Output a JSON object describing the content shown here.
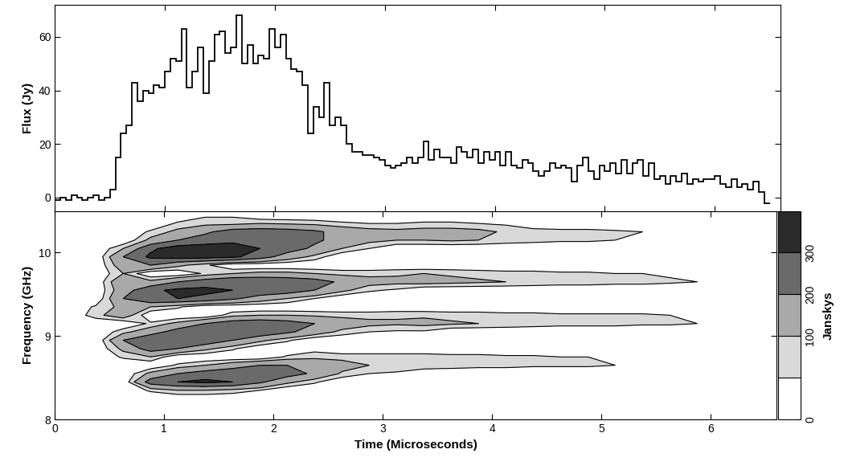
{
  "chart_data": [
    {
      "type": "histogram",
      "y_label": "Flux (Jy)",
      "bins": [
        0.0,
        0.05,
        0.1,
        0.15,
        0.2,
        0.25,
        0.3,
        0.35,
        0.4,
        0.45,
        0.5,
        0.55,
        0.6,
        0.65,
        0.7,
        0.75,
        0.8,
        0.85,
        0.9,
        0.95,
        1.0,
        1.05,
        1.1,
        1.15,
        1.2,
        1.25,
        1.3,
        1.35,
        1.4,
        1.45,
        1.5,
        1.55,
        1.6,
        1.65,
        1.7,
        1.75,
        1.8,
        1.85,
        1.9,
        1.95,
        2.0,
        2.05,
        2.1,
        2.15,
        2.2,
        2.25,
        2.3,
        2.35,
        2.4,
        2.45,
        2.5,
        2.55,
        2.6,
        2.65,
        2.7,
        2.75,
        2.8,
        2.85,
        2.9,
        2.95,
        3.0,
        3.05,
        3.1,
        3.15,
        3.2,
        3.25,
        3.3,
        3.35,
        3.4,
        3.45,
        3.5,
        3.55,
        3.6,
        3.65,
        3.7,
        3.75,
        3.8,
        3.85,
        3.9,
        3.95,
        4.0,
        4.05,
        4.1,
        4.15,
        4.2,
        4.25,
        4.3,
        4.35,
        4.4,
        4.45,
        4.5,
        4.55,
        4.6,
        4.65,
        4.7,
        4.75,
        4.8,
        4.85,
        4.9,
        4.95,
        5.0,
        5.05,
        5.1,
        5.15,
        5.2,
        5.25,
        5.3,
        5.35,
        5.4,
        5.45,
        5.5,
        5.55,
        5.6,
        5.65,
        5.7,
        5.75,
        5.8,
        5.85,
        5.9,
        5.95,
        6.0,
        6.05,
        6.1,
        6.15,
        6.2,
        6.25,
        6.3,
        6.35,
        6.4,
        6.45,
        6.5
      ],
      "values": [
        -1,
        0,
        -1,
        1,
        0,
        -1,
        0,
        1,
        -1,
        0,
        3,
        15,
        24,
        27,
        43,
        36,
        40,
        39,
        42,
        41,
        47,
        52,
        51,
        63,
        41,
        47,
        56,
        39,
        51,
        61,
        62,
        54,
        56,
        68,
        50,
        57,
        50,
        53,
        52,
        63,
        56,
        61,
        52,
        48,
        47,
        42,
        24,
        34,
        30,
        43,
        27,
        30,
        27,
        20,
        17,
        17,
        16,
        16,
        15,
        14,
        12,
        11,
        12,
        13,
        15,
        13,
        15,
        21,
        14,
        18,
        15,
        15,
        13,
        19,
        17,
        15,
        18,
        13,
        17,
        14,
        17,
        12,
        17,
        12,
        11,
        14,
        13,
        10,
        8,
        10,
        13,
        11,
        12,
        11,
        6,
        12,
        15,
        10,
        7,
        12,
        10,
        13,
        9,
        14,
        9,
        13,
        14,
        8,
        13,
        7,
        8,
        5,
        8,
        6,
        9,
        5,
        7,
        6,
        7,
        7,
        8,
        5,
        4,
        7,
        4,
        5,
        3,
        6,
        2,
        -2
      ],
      "color": "#000000",
      "xlim": [
        0,
        6.6
      ],
      "xticks": [
        0,
        1,
        2,
        3,
        4,
        5,
        6
      ],
      "ylim": [
        -5,
        72
      ],
      "yticks": [
        0,
        20,
        40,
        60
      ],
      "tick_labels": "y"
    },
    {
      "type": "heatmap",
      "x_label": "Time (Microseconds)",
      "y_label": "Frequency (GHz)",
      "colorbar_label": "Janskys",
      "x": [
        0.125,
        0.375,
        0.625,
        0.875,
        1.125,
        1.375,
        1.625,
        1.875,
        2.125,
        2.375,
        2.625,
        2.875,
        3.125,
        3.375,
        3.625,
        3.875,
        4.125,
        4.375,
        4.625,
        4.875,
        5.125,
        5.375,
        5.625,
        5.875,
        6.125,
        6.375
      ],
      "y": [
        8.05,
        8.15,
        8.25,
        8.35,
        8.45,
        8.55,
        8.65,
        8.75,
        8.85,
        8.95,
        9.05,
        9.15,
        9.25,
        9.35,
        9.45,
        9.55,
        9.65,
        9.75,
        9.85,
        9.95,
        10.05,
        10.15,
        10.25,
        10.35,
        10.45
      ],
      "cells": [
        [
          0,
          0,
          0,
          0,
          0,
          0,
          0,
          0,
          0,
          0,
          0,
          0,
          0,
          0,
          0,
          0,
          0,
          0,
          0,
          0,
          0,
          0,
          0,
          0,
          0,
          0
        ],
        [
          0,
          0,
          0,
          0,
          0,
          0,
          0,
          0,
          0,
          0,
          0,
          0,
          0,
          0,
          0,
          0,
          0,
          0,
          0,
          0,
          0,
          0,
          0,
          0,
          0,
          0
        ],
        [
          0,
          0,
          0,
          0,
          0,
          0,
          0,
          0,
          0,
          0,
          0,
          0,
          0,
          0,
          0,
          0,
          0,
          0,
          0,
          0,
          0,
          0,
          0,
          0,
          0,
          0
        ],
        [
          0,
          0,
          0,
          60,
          100,
          100,
          80,
          50,
          0,
          0,
          0,
          0,
          0,
          0,
          0,
          0,
          40,
          0,
          0,
          0,
          0,
          0,
          0,
          0,
          0,
          0
        ],
        [
          0,
          0,
          0,
          250,
          300,
          320,
          300,
          220,
          120,
          60,
          0,
          0,
          0,
          0,
          0,
          0,
          0,
          0,
          0,
          0,
          0,
          0,
          0,
          0,
          0,
          0
        ],
        [
          0,
          0,
          0,
          120,
          200,
          250,
          280,
          280,
          250,
          180,
          90,
          50,
          40,
          0,
          0,
          0,
          0,
          0,
          0,
          0,
          0,
          0,
          0,
          0,
          0,
          0
        ],
        [
          0,
          0,
          0,
          0,
          60,
          100,
          150,
          200,
          200,
          180,
          130,
          100,
          90,
          90,
          80,
          70,
          70,
          60,
          60,
          60,
          50,
          50,
          40,
          0,
          0,
          0
        ],
        [
          0,
          0,
          60,
          100,
          0,
          0,
          0,
          0,
          60,
          80,
          80,
          80,
          80,
          80,
          70,
          70,
          60,
          60,
          50,
          50,
          40,
          40,
          30,
          0,
          0,
          0
        ],
        [
          0,
          0,
          120,
          250,
          200,
          120,
          60,
          0,
          0,
          30,
          0,
          0,
          0,
          0,
          0,
          0,
          0,
          0,
          0,
          0,
          0,
          0,
          0,
          0,
          0,
          0
        ],
        [
          0,
          0,
          200,
          300,
          300,
          280,
          200,
          120,
          60,
          0,
          0,
          0,
          0,
          0,
          0,
          0,
          0,
          0,
          0,
          0,
          0,
          0,
          0,
          0,
          0,
          0
        ],
        [
          0,
          0,
          80,
          150,
          250,
          300,
          300,
          280,
          220,
          150,
          80,
          50,
          40,
          40,
          0,
          0,
          0,
          0,
          0,
          0,
          0,
          0,
          0,
          0,
          0,
          0
        ],
        [
          0,
          0,
          0,
          60,
          120,
          200,
          260,
          280,
          250,
          200,
          150,
          120,
          110,
          120,
          110,
          100,
          90,
          80,
          70,
          70,
          70,
          60,
          60,
          50,
          40,
          0
        ],
        [
          0,
          80,
          150,
          0,
          0,
          0,
          80,
          100,
          100,
          90,
          80,
          80,
          90,
          90,
          80,
          80,
          70,
          70,
          60,
          60,
          60,
          60,
          50,
          50,
          40,
          0
        ],
        [
          0,
          60,
          120,
          100,
          60,
          0,
          0,
          0,
          0,
          0,
          0,
          0,
          0,
          0,
          0,
          0,
          0,
          0,
          0,
          0,
          0,
          0,
          0,
          0,
          0,
          0
        ],
        [
          0,
          0,
          200,
          300,
          300,
          280,
          220,
          150,
          100,
          50,
          0,
          0,
          0,
          0,
          0,
          0,
          0,
          0,
          0,
          0,
          0,
          0,
          0,
          0,
          0,
          0
        ],
        [
          0,
          0,
          150,
          280,
          320,
          320,
          300,
          280,
          260,
          200,
          120,
          60,
          40,
          0,
          0,
          0,
          0,
          0,
          0,
          0,
          0,
          0,
          0,
          0,
          0,
          0
        ],
        [
          0,
          0,
          180,
          120,
          200,
          260,
          300,
          300,
          280,
          250,
          180,
          130,
          120,
          130,
          120,
          110,
          100,
          90,
          80,
          80,
          70,
          70,
          60,
          50,
          0,
          0
        ],
        [
          0,
          0,
          100,
          0,
          0,
          60,
          100,
          120,
          120,
          100,
          80,
          80,
          90,
          100,
          90,
          80,
          70,
          70,
          60,
          60,
          50,
          50,
          40,
          40,
          0,
          0
        ],
        [
          0,
          0,
          150,
          200,
          120,
          60,
          0,
          0,
          0,
          0,
          0,
          0,
          0,
          0,
          0,
          0,
          0,
          0,
          0,
          0,
          0,
          0,
          0,
          0,
          0,
          0
        ],
        [
          0,
          0,
          200,
          320,
          340,
          340,
          320,
          250,
          150,
          80,
          0,
          0,
          0,
          0,
          0,
          0,
          0,
          0,
          0,
          0,
          0,
          0,
          0,
          0,
          0,
          0
        ],
        [
          0,
          0,
          100,
          280,
          350,
          350,
          340,
          300,
          250,
          180,
          100,
          50,
          0,
          0,
          0,
          0,
          0,
          0,
          0,
          0,
          0,
          0,
          0,
          0,
          0,
          0
        ],
        [
          0,
          0,
          0,
          120,
          200,
          250,
          280,
          280,
          260,
          220,
          160,
          120,
          100,
          100,
          110,
          100,
          80,
          70,
          60,
          60,
          50,
          0,
          0,
          0,
          0,
          0
        ],
        [
          0,
          0,
          0,
          60,
          120,
          180,
          250,
          260,
          250,
          220,
          160,
          130,
          120,
          130,
          130,
          120,
          90,
          80,
          70,
          70,
          60,
          50,
          0,
          0,
          0,
          0
        ],
        [
          0,
          0,
          0,
          0,
          60,
          80,
          80,
          100,
          90,
          80,
          60,
          50,
          50,
          60,
          60,
          50,
          40,
          0,
          0,
          0,
          0,
          0,
          0,
          0,
          0,
          0
        ],
        [
          0,
          0,
          0,
          0,
          0,
          40,
          40,
          0,
          0,
          0,
          0,
          0,
          0,
          0,
          0,
          0,
          0,
          0,
          0,
          0,
          0,
          0,
          0,
          0,
          0,
          0
        ]
      ],
      "contour_levels": [
        50,
        100,
        200,
        300
      ],
      "colorbar_range": [
        0,
        360
      ],
      "colorbar_ticks": [
        0,
        100,
        200,
        300
      ],
      "xlim": [
        0,
        6.6
      ],
      "xticks": [
        0,
        1,
        2,
        3,
        4,
        5,
        6
      ],
      "ylim": [
        8,
        10.5
      ],
      "yticks": [
        8,
        9,
        10
      ]
    }
  ]
}
